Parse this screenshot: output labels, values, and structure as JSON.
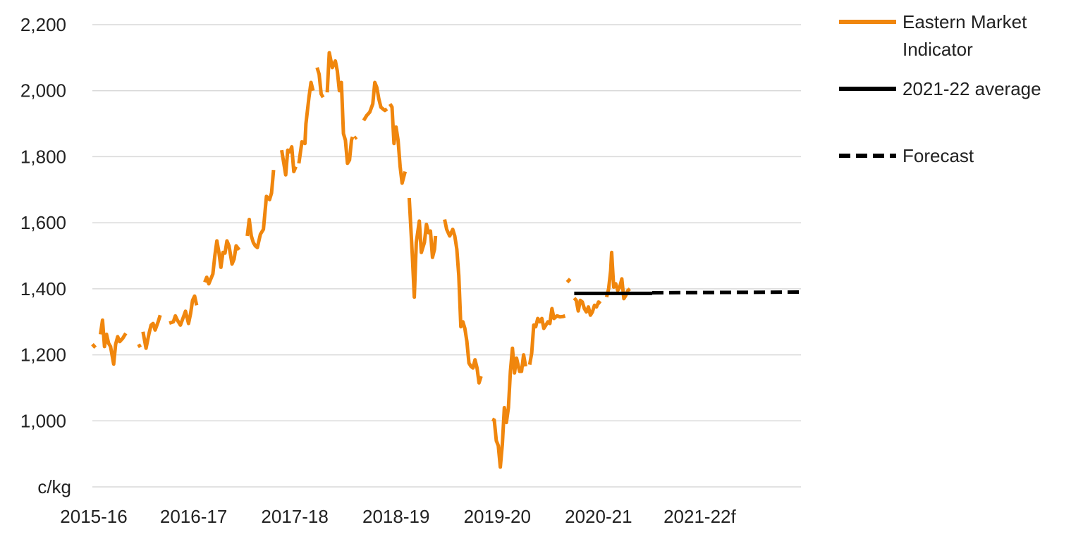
{
  "chart_data": {
    "type": "line",
    "ylabel": "c/kg",
    "ylim": [
      800,
      2200
    ],
    "yticks": [
      {
        "value": 2200,
        "label": "2,200"
      },
      {
        "value": 2000,
        "label": "2,000"
      },
      {
        "value": 1800,
        "label": "1,800"
      },
      {
        "value": 1600,
        "label": "1,600"
      },
      {
        "value": 1400,
        "label": "1,400"
      },
      {
        "value": 1200,
        "label": "1,200"
      },
      {
        "value": 1000,
        "label": "1,000"
      }
    ],
    "xlim": [
      0,
      7
    ],
    "xticks": [
      {
        "value": 0,
        "label": "2015-16"
      },
      {
        "value": 1,
        "label": "2016-17"
      },
      {
        "value": 2,
        "label": "2017-18"
      },
      {
        "value": 3,
        "label": "2018-19"
      },
      {
        "value": 4,
        "label": "2019-20"
      },
      {
        "value": 5,
        "label": "2020-21"
      },
      {
        "value": 6,
        "label": "2021-22f"
      }
    ],
    "grid": true,
    "legend_position": "right",
    "series": [
      {
        "name": "Eastern Market Indicator",
        "color": "#F0860D",
        "style": "solid",
        "segments": [
          [
            [
              0.0,
              1232
            ],
            [
              0.03,
              1222
            ]
          ],
          [
            [
              0.08,
              1262
            ],
            [
              0.1,
              1305
            ],
            [
              0.12,
              1225
            ],
            [
              0.14,
              1262
            ],
            [
              0.16,
              1235
            ],
            [
              0.18,
              1225
            ],
            [
              0.21,
              1172
            ],
            [
              0.23,
              1232
            ],
            [
              0.25,
              1255
            ],
            [
              0.27,
              1240
            ],
            [
              0.3,
              1250
            ],
            [
              0.33,
              1265
            ]
          ],
          [
            [
              0.45,
              1225
            ],
            [
              0.48,
              1230
            ]
          ],
          [
            [
              0.5,
              1270
            ],
            [
              0.53,
              1220
            ],
            [
              0.56,
              1265
            ],
            [
              0.58,
              1290
            ],
            [
              0.6,
              1295
            ],
            [
              0.62,
              1275
            ],
            [
              0.65,
              1300
            ],
            [
              0.67,
              1320
            ]
          ],
          [
            [
              0.76,
              1296
            ],
            [
              0.8,
              1300
            ],
            [
              0.82,
              1318
            ],
            [
              0.84,
              1305
            ],
            [
              0.87,
              1290
            ],
            [
              0.9,
              1315
            ],
            [
              0.92,
              1332
            ],
            [
              0.95,
              1295
            ],
            [
              0.97,
              1325
            ],
            [
              0.99,
              1365
            ],
            [
              1.01,
              1378
            ],
            [
              1.03,
              1350
            ]
          ],
          [
            [
              1.11,
              1420
            ],
            [
              1.13,
              1435
            ],
            [
              1.15,
              1415
            ],
            [
              1.17,
              1430
            ],
            [
              1.19,
              1445
            ],
            [
              1.21,
              1500
            ],
            [
              1.23,
              1545
            ],
            [
              1.25,
              1510
            ],
            [
              1.27,
              1465
            ],
            [
              1.29,
              1510
            ],
            [
              1.31,
              1508
            ],
            [
              1.33,
              1545
            ],
            [
              1.35,
              1530
            ],
            [
              1.38,
              1475
            ],
            [
              1.4,
              1490
            ],
            [
              1.42,
              1530
            ],
            [
              1.45,
              1518
            ]
          ],
          [
            [
              1.53,
              1560
            ],
            [
              1.55,
              1610
            ],
            [
              1.57,
              1560
            ],
            [
              1.59,
              1540
            ],
            [
              1.61,
              1530
            ],
            [
              1.63,
              1525
            ],
            [
              1.66,
              1565
            ],
            [
              1.69,
              1580
            ],
            [
              1.72,
              1680
            ],
            [
              1.75,
              1670
            ],
            [
              1.77,
              1690
            ],
            [
              1.79,
              1760
            ]
          ],
          [
            [
              1.87,
              1820
            ],
            [
              1.91,
              1745
            ],
            [
              1.93,
              1820
            ],
            [
              1.95,
              1815
            ],
            [
              1.97,
              1830
            ],
            [
              1.99,
              1755
            ],
            [
              2.01,
              1770
            ]
          ],
          [
            [
              2.04,
              1780
            ],
            [
              2.07,
              1845
            ],
            [
              2.1,
              1840
            ],
            [
              2.11,
              1900
            ],
            [
              2.14,
              1980
            ],
            [
              2.16,
              2025
            ],
            [
              2.18,
              2000
            ]
          ],
          [
            [
              2.22,
              2070
            ],
            [
              2.24,
              2050
            ],
            [
              2.26,
              1990
            ],
            [
              2.28,
              1980
            ]
          ],
          [
            [
              2.32,
              1995
            ],
            [
              2.34,
              2115
            ],
            [
              2.37,
              2070
            ],
            [
              2.4,
              2090
            ],
            [
              2.42,
              2060
            ],
            [
              2.44,
              2000
            ],
            [
              2.46,
              2025
            ],
            [
              2.48,
              1870
            ],
            [
              2.5,
              1850
            ],
            [
              2.52,
              1780
            ],
            [
              2.54,
              1790
            ],
            [
              2.56,
              1850
            ],
            [
              2.57,
              1860
            ]
          ],
          [
            [
              2.59,
              1855
            ],
            [
              2.61,
              1860
            ]
          ],
          [
            [
              2.68,
              1910
            ],
            [
              2.71,
              1925
            ],
            [
              2.74,
              1935
            ],
            [
              2.77,
              1960
            ],
            [
              2.79,
              2025
            ],
            [
              2.81,
              2010
            ],
            [
              2.83,
              1975
            ],
            [
              2.85,
              1950
            ],
            [
              2.87,
              1945
            ],
            [
              2.89,
              1940
            ],
            [
              2.91,
              1945
            ]
          ],
          [
            [
              2.94,
              1960
            ],
            [
              2.96,
              1950
            ],
            [
              2.98,
              1840
            ],
            [
              3.0,
              1890
            ],
            [
              3.02,
              1850
            ],
            [
              3.04,
              1770
            ],
            [
              3.06,
              1720
            ],
            [
              3.09,
              1755
            ]
          ],
          [
            [
              3.13,
              1675
            ],
            [
              3.16,
              1505
            ],
            [
              3.18,
              1375
            ],
            [
              3.2,
              1540
            ],
            [
              3.23,
              1605
            ],
            [
              3.25,
              1510
            ],
            [
              3.28,
              1540
            ],
            [
              3.3,
              1595
            ],
            [
              3.32,
              1570
            ],
            [
              3.34,
              1575
            ],
            [
              3.36,
              1495
            ],
            [
              3.38,
              1520
            ],
            [
              3.39,
              1560
            ]
          ],
          [
            [
              3.48,
              1610
            ],
            [
              3.5,
              1580
            ],
            [
              3.53,
              1560
            ],
            [
              3.56,
              1580
            ],
            [
              3.58,
              1560
            ],
            [
              3.6,
              1520
            ],
            [
              3.62,
              1440
            ],
            [
              3.64,
              1285
            ],
            [
              3.66,
              1300
            ],
            [
              3.68,
              1280
            ],
            [
              3.7,
              1240
            ],
            [
              3.72,
              1175
            ],
            [
              3.74,
              1165
            ],
            [
              3.76,
              1160
            ],
            [
              3.78,
              1185
            ],
            [
              3.8,
              1160
            ],
            [
              3.82,
              1115
            ],
            [
              3.84,
              1135
            ]
          ],
          [
            [
              3.95,
              1005
            ],
            [
              3.97,
              1002
            ],
            [
              3.99,
              940
            ],
            [
              4.01,
              925
            ],
            [
              4.03,
              860
            ],
            [
              4.05,
              930
            ],
            [
              4.07,
              1040
            ],
            [
              4.09,
              995
            ],
            [
              4.11,
              1040
            ],
            [
              4.13,
              1150
            ],
            [
              4.15,
              1220
            ],
            [
              4.17,
              1145
            ],
            [
              4.19,
              1190
            ],
            [
              4.22,
              1150
            ],
            [
              4.24,
              1150
            ],
            [
              4.26,
              1200
            ],
            [
              4.28,
              1165
            ]
          ],
          [
            [
              4.32,
              1170
            ],
            [
              4.34,
              1205
            ],
            [
              4.36,
              1290
            ],
            [
              4.38,
              1285
            ],
            [
              4.4,
              1310
            ],
            [
              4.42,
              1300
            ],
            [
              4.44,
              1310
            ],
            [
              4.46,
              1280
            ],
            [
              4.48,
              1290
            ],
            [
              4.5,
              1300
            ],
            [
              4.52,
              1295
            ],
            [
              4.54,
              1340
            ],
            [
              4.56,
              1310
            ],
            [
              4.59,
              1318
            ],
            [
              4.62,
              1315
            ],
            [
              4.65,
              1316
            ],
            [
              4.67,
              1318
            ]
          ],
          [
            [
              4.69,
              1420
            ],
            [
              4.72,
              1430
            ]
          ],
          [
            [
              4.76,
              1372
            ],
            [
              4.78,
              1365
            ],
            [
              4.8,
              1333
            ],
            [
              4.82,
              1365
            ],
            [
              4.84,
              1360
            ],
            [
              4.86,
              1340
            ],
            [
              4.88,
              1330
            ],
            [
              4.9,
              1345
            ],
            [
              4.92,
              1320
            ],
            [
              4.94,
              1330
            ],
            [
              4.96,
              1350
            ],
            [
              4.98,
              1345
            ],
            [
              5.0,
              1360
            ],
            [
              5.02,
              1355
            ]
          ],
          [
            [
              5.08,
              1375
            ],
            [
              5.1,
              1400
            ],
            [
              5.12,
              1455
            ],
            [
              5.13,
              1510
            ],
            [
              5.14,
              1455
            ],
            [
              5.15,
              1405
            ],
            [
              5.17,
              1415
            ],
            [
              5.19,
              1395
            ],
            [
              5.21,
              1405
            ],
            [
              5.23,
              1430
            ],
            [
              5.25,
              1370
            ],
            [
              5.27,
              1380
            ],
            [
              5.29,
              1395
            ],
            [
              5.31,
              1400
            ]
          ]
        ]
      },
      {
        "name": "2021-22 average",
        "color": "#000000",
        "style": "solid",
        "segments": [
          [
            [
              4.76,
              1386
            ],
            [
              5.53,
              1386
            ]
          ]
        ]
      },
      {
        "name": "Forecast",
        "color": "#000000",
        "style": "dashed",
        "segments": [
          [
            [
              5.53,
              1388
            ],
            [
              7.0,
              1390
            ]
          ]
        ]
      }
    ],
    "legend": [
      {
        "lines": [
          "Eastern Market",
          "Indicator"
        ],
        "color": "#F0860D",
        "style": "solid"
      },
      {
        "lines": [
          "2021-22 average"
        ],
        "color": "#000000",
        "style": "solid"
      },
      {
        "lines": [
          "Forecast"
        ],
        "color": "#000000",
        "style": "dashed"
      }
    ]
  }
}
